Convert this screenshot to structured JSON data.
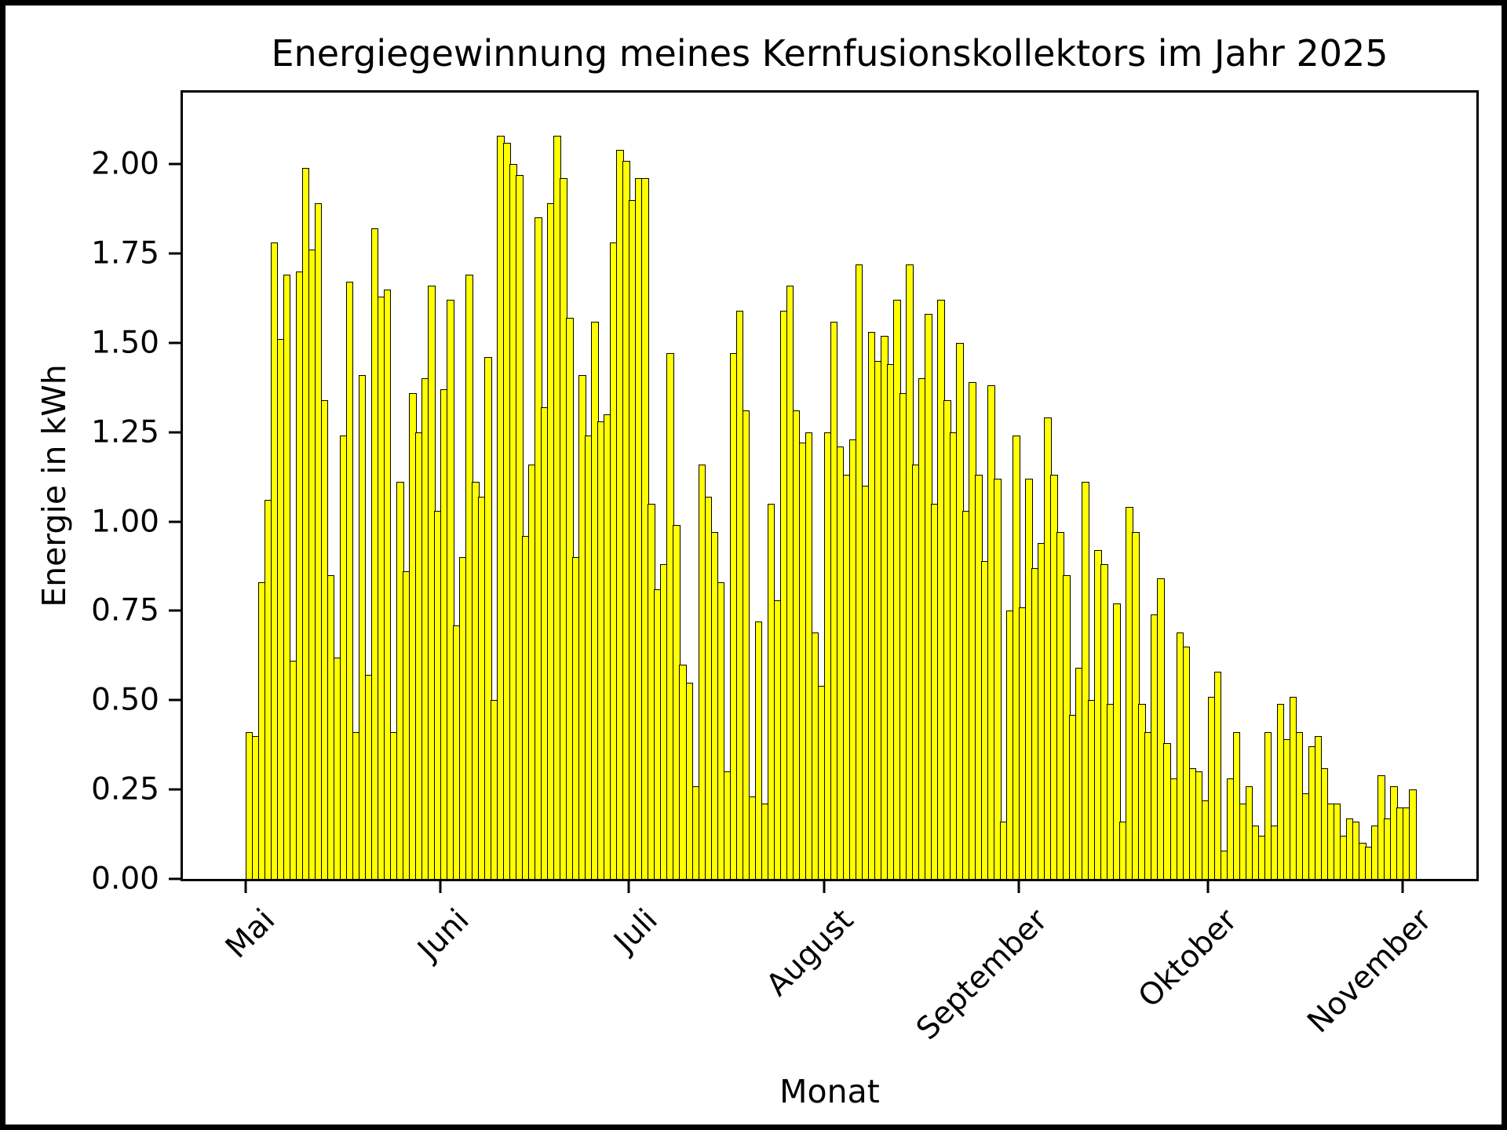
{
  "chart_data": {
    "type": "bar",
    "title": "Energiegewinnung meines Kernfusionskollektors im Jahr 2025",
    "xlabel": "Monat",
    "ylabel": "Energie in kWh",
    "ylim": [
      0,
      2.2
    ],
    "grid": false,
    "legend": null,
    "bar_color": "#ffff00",
    "bar_edge_color": "#000000",
    "y_tick_values": [
      0,
      0.25,
      0.5,
      0.75,
      1.0,
      1.25,
      1.5,
      1.75,
      2.0
    ],
    "y_tick_labels": [
      "0.00",
      "0.25",
      "0.50",
      "0.75",
      "1.00",
      "1.25",
      "1.50",
      "1.75",
      "2.00"
    ],
    "x_tick_labels": [
      "Mai",
      "Juni",
      "Juli",
      "August",
      "September",
      "Oktober",
      "November"
    ],
    "x_tick_day_offsets": [
      0,
      31,
      61,
      92,
      123,
      153,
      184
    ],
    "categories_note": "daily values starting Mai 1",
    "values": [
      0.41,
      0.4,
      0.83,
      1.06,
      1.78,
      1.51,
      1.69,
      0.61,
      1.7,
      1.99,
      1.76,
      1.89,
      1.34,
      0.85,
      0.62,
      1.24,
      1.67,
      0.41,
      1.41,
      0.57,
      1.82,
      1.63,
      1.65,
      0.41,
      1.11,
      0.86,
      1.36,
      1.25,
      1.4,
      1.66,
      1.03,
      1.37,
      1.62,
      0.71,
      0.9,
      1.69,
      1.11,
      1.07,
      1.46,
      0.5,
      2.08,
      2.06,
      2.0,
      1.97,
      0.96,
      1.16,
      1.85,
      1.32,
      1.89,
      2.08,
      1.96,
      1.57,
      0.9,
      1.41,
      1.24,
      1.56,
      1.28,
      1.3,
      1.78,
      2.04,
      2.01,
      1.9,
      1.96,
      1.96,
      1.05,
      0.81,
      0.88,
      1.47,
      0.99,
      0.6,
      0.55,
      0.26,
      1.16,
      1.07,
      0.97,
      0.83,
      0.3,
      1.47,
      1.59,
      1.31,
      0.23,
      0.72,
      0.21,
      1.05,
      0.78,
      1.59,
      1.66,
      1.31,
      1.22,
      1.25,
      0.69,
      0.54,
      1.25,
      1.56,
      1.21,
      1.13,
      1.23,
      1.72,
      1.1,
      1.53,
      1.45,
      1.52,
      1.44,
      1.62,
      1.36,
      1.72,
      1.16,
      1.4,
      1.58,
      1.05,
      1.62,
      1.34,
      1.25,
      1.5,
      1.03,
      1.39,
      1.13,
      0.89,
      1.38,
      1.12,
      0.16,
      0.75,
      1.24,
      0.76,
      1.12,
      0.87,
      0.94,
      1.29,
      1.13,
      0.97,
      0.85,
      0.46,
      0.59,
      1.11,
      0.5,
      0.92,
      0.88,
      0.49,
      0.77,
      0.16,
      1.04,
      0.97,
      0.49,
      0.41,
      0.74,
      0.84,
      0.38,
      0.28,
      0.69,
      0.65,
      0.31,
      0.3,
      0.22,
      0.51,
      0.58,
      0.08,
      0.28,
      0.41,
      0.21,
      0.26,
      0.15,
      0.12,
      0.41,
      0.15,
      0.49,
      0.39,
      0.51,
      0.41,
      0.24,
      0.37,
      0.4,
      0.31,
      0.21,
      0.21,
      0.12,
      0.17,
      0.16,
      0.1,
      0.09,
      0.15,
      0.29,
      0.17,
      0.26,
      0.2,
      0.2,
      0.25
    ]
  }
}
